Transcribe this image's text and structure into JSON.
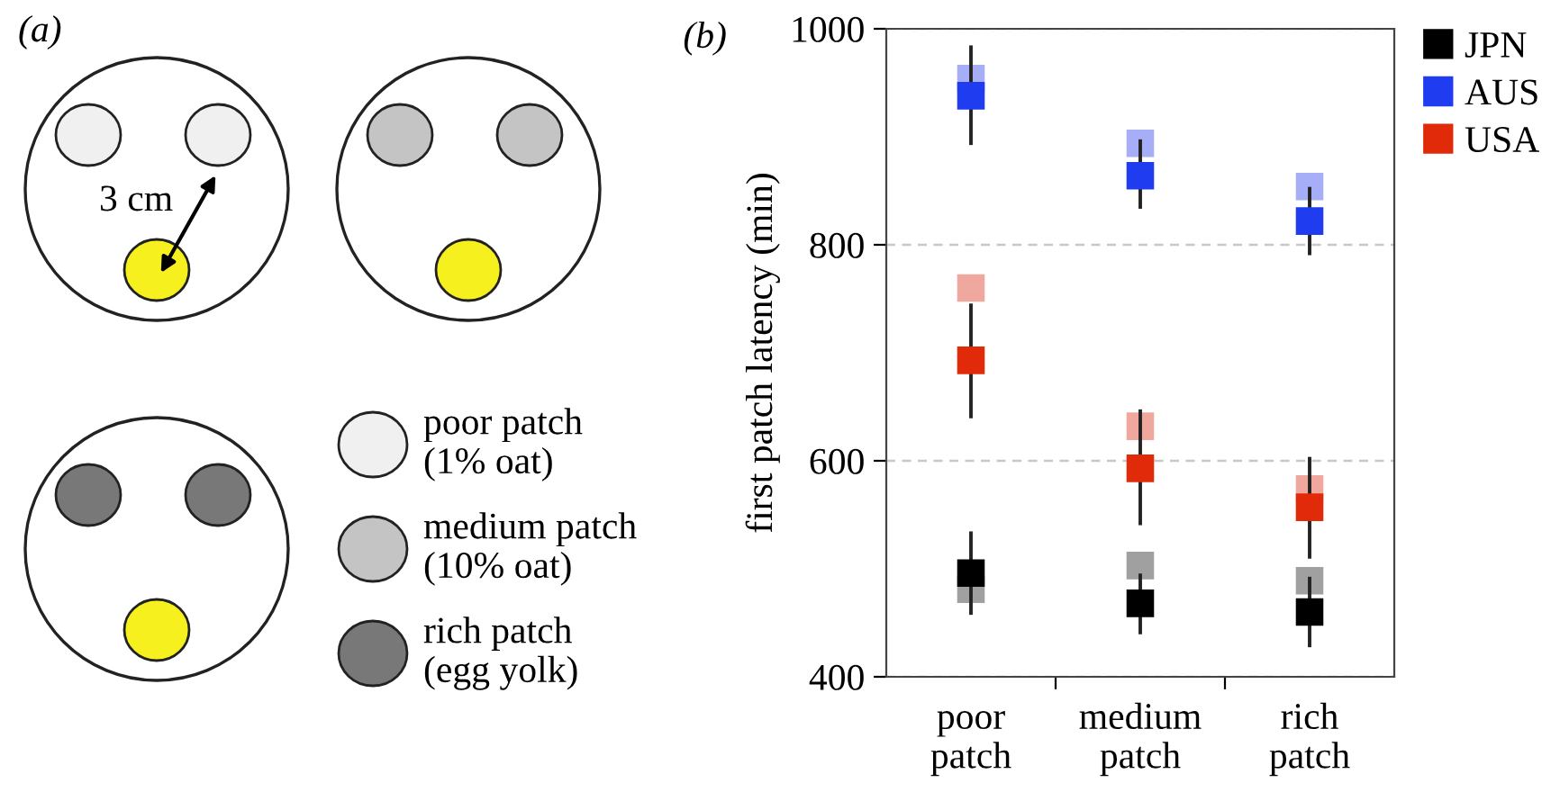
{
  "chart_data": [
    {
      "type": "other",
      "title": "(a)",
      "annotations": [
        "3 cm",
        "poor patch\n(1% oat)",
        "medium patch\n(10% oat)",
        "rich patch\n(egg yolk)"
      ]
    },
    {
      "type": "scatter",
      "title": "(b)",
      "ylabel": "first patch latency (min)",
      "categories": [
        "poor\npatch",
        "medium\npatch",
        "rich\npatch"
      ],
      "ylim": [
        400,
        1000
      ],
      "yticks": [
        400,
        600,
        800,
        1000
      ],
      "grid": "y",
      "legend": "top right",
      "marker": "square",
      "series": [
        {
          "color": "#a0a0a0",
          "values": [
            481,
            503,
            489
          ]
        },
        {
          "color": "#a6aef8",
          "values": [
            954,
            894,
            854
          ]
        },
        {
          "color": "#f0a89e",
          "values": [
            760,
            632,
            574
          ]
        },
        {
          "name": "JPN",
          "color": "#000000",
          "values": [
            496,
            468,
            460
          ],
          "errors": [
            [
              459,
              533
            ],
            [
              441,
              494
            ],
            [
              429,
              491
            ]
          ]
        },
        {
          "name": "AUS",
          "color": "#1f3cf0",
          "values": [
            938,
            864,
            822
          ],
          "errors": [
            [
              894,
              983
            ],
            [
              835,
              896
            ],
            [
              792,
              852
            ]
          ]
        },
        {
          "name": "USA",
          "color": "#e02a0a",
          "values": [
            693,
            593,
            557
          ],
          "errors": [
            [
              641,
              744
            ],
            [
              542,
              646
            ],
            [
              511,
              602
            ]
          ]
        }
      ]
    }
  ]
}
